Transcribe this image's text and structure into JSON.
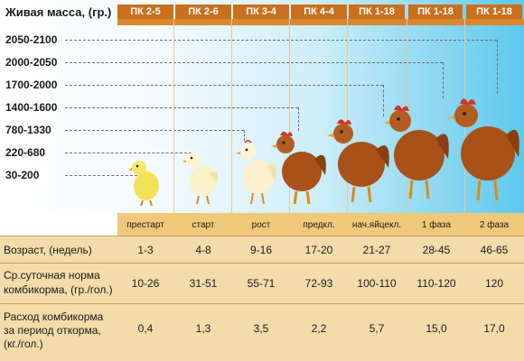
{
  "mass": {
    "title": "Живая масса, (гр.)",
    "labels": [
      "2050-2100",
      "2000-2050",
      "1700-2000",
      "1400-1600",
      "780-1330",
      "220-680",
      "30-200"
    ]
  },
  "feeds": [
    "ПК 2-5",
    "ПК 2-6",
    "ПК 3-4",
    "ПК 4-4",
    "ПК 1-18",
    "ПК 1-18",
    "ПК 1-18"
  ],
  "phases": [
    "престарт",
    "старт",
    "рост",
    "предкл.",
    "нач.яйцекл.",
    "1 фаза",
    "2 фаза"
  ],
  "rows": {
    "age": {
      "label": "Возраст, (недель)",
      "values": [
        "1-3",
        "4-8",
        "9-16",
        "17-20",
        "21-27",
        "28-45",
        "46-65"
      ]
    },
    "daily": {
      "label_line1": "Ср.суточная норма",
      "label_line2": "комбикорма, (гр./гол.)",
      "values": [
        "10-26",
        "31-51",
        "55-71",
        "72-93",
        "100-110",
        "110-120",
        "120"
      ]
    },
    "period": {
      "label_line1": "Расход комбикорма",
      "label_line2": "за период откорма,",
      "label_line3": "(кг./гол.)",
      "values": [
        "0,4",
        "1,3",
        "3,5",
        "2,2",
        "5,7",
        "15,0",
        "17,0"
      ]
    }
  },
  "colors": {
    "header": "#c9701f",
    "table_bg": "#f3dcaa",
    "phase_bg": "#f0c87a",
    "sky_end": "#5ec8ec",
    "hen": "#a8521a",
    "chick": "#f4e15a"
  }
}
